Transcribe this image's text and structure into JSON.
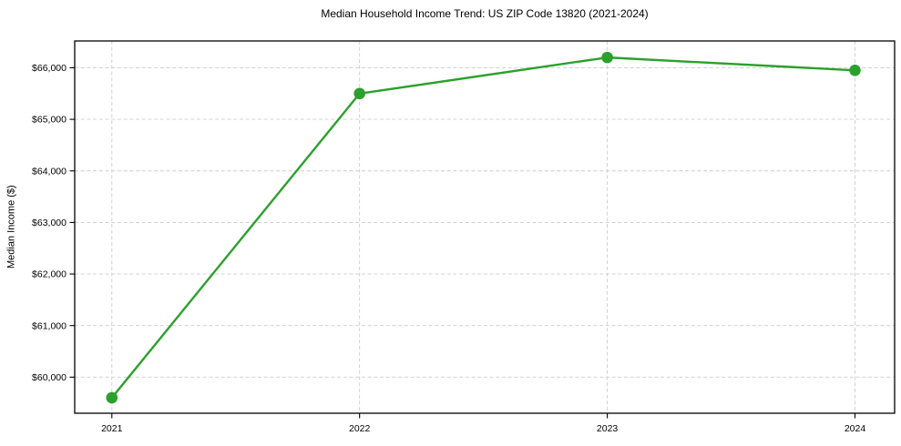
{
  "title": "Median Household Income Trend: US ZIP Code 13820 (2021-2024)",
  "chart_data": {
    "type": "line",
    "title": "Median Household Income Trend: US ZIP Code 13820 (2021-2024)",
    "xlabel": "",
    "ylabel": "Median Income ($)",
    "x": [
      2021,
      2022,
      2023,
      2024
    ],
    "values": [
      59600,
      65500,
      66200,
      65950
    ],
    "x_tick_labels": [
      "2021",
      "2022",
      "2023",
      "2024"
    ],
    "y_tick_values": [
      60000,
      61000,
      62000,
      63000,
      64000,
      65000,
      66000
    ],
    "y_tick_labels": [
      "$60,000",
      "$61,000",
      "$62,000",
      "$63,000",
      "$64,000",
      "$65,000",
      "$66,000"
    ],
    "xlim": [
      2020.85,
      2024.16
    ],
    "ylim": [
      59300,
      66520
    ],
    "grid": true,
    "grid_style": "dashed",
    "grid_color": "#cccccc",
    "line_color": "#2ca02c",
    "marker": "circle",
    "spine_color": "#000000",
    "text_color": "#000000",
    "background": "#ffffff",
    "legend": false
  }
}
